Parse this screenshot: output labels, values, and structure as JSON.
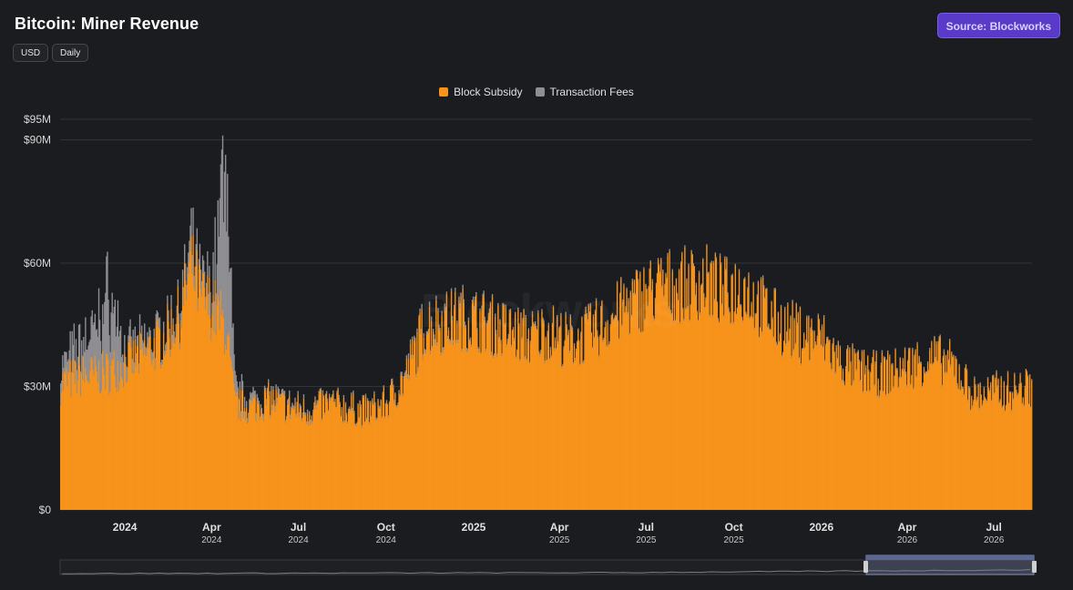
{
  "header": {
    "title": "Bitcoin: Miner Revenue",
    "currency_label": "USD",
    "interval_label": "Daily",
    "source_label": "Source: Blockworks"
  },
  "watermark": "Blockworks",
  "colors": {
    "subsidy": "#f7931a",
    "fees": "#8e8e93",
    "background": "#1b1c1f",
    "grid": "#333438",
    "accent": "#5a3bc9"
  },
  "chart_data": {
    "type": "bar",
    "stacked": true,
    "title": "Bitcoin: Miner Revenue",
    "unit": "USD",
    "ylim": [
      0,
      95000000
    ],
    "y_ticks": [
      {
        "value": 0,
        "label": "$0"
      },
      {
        "value": 30000000,
        "label": "$30M"
      },
      {
        "value": 60000000,
        "label": "$60M"
      },
      {
        "value": 90000000,
        "label": "$90M"
      },
      {
        "value": 95000000,
        "label": "$95M"
      }
    ],
    "x_range": [
      "2023-10-25",
      "2026-08-10"
    ],
    "x_ticks": [
      {
        "date": "2024-01-01",
        "label": "2024",
        "sub": ""
      },
      {
        "date": "2024-04-01",
        "label": "Apr",
        "sub": "2024"
      },
      {
        "date": "2024-07-01",
        "label": "Jul",
        "sub": "2024"
      },
      {
        "date": "2024-10-01",
        "label": "Oct",
        "sub": "2024"
      },
      {
        "date": "2025-01-01",
        "label": "2025",
        "sub": ""
      },
      {
        "date": "2025-04-01",
        "label": "Apr",
        "sub": "2025"
      },
      {
        "date": "2025-07-01",
        "label": "Jul",
        "sub": "2025"
      },
      {
        "date": "2025-10-01",
        "label": "Oct",
        "sub": "2025"
      },
      {
        "date": "2026-01-01",
        "label": "2026",
        "sub": ""
      },
      {
        "date": "2026-04-01",
        "label": "Apr",
        "sub": "2026"
      },
      {
        "date": "2026-07-01",
        "label": "Jul",
        "sub": "2026"
      }
    ],
    "legend": {
      "position": "top-center"
    },
    "grid": true,
    "series": [
      {
        "name": "Block Subsidy",
        "color": "#f7931a",
        "x": [
          "2023-10-25",
          "2023-11-15",
          "2023-12-01",
          "2023-12-15",
          "2024-01-01",
          "2024-01-20",
          "2024-02-10",
          "2024-02-28",
          "2024-03-10",
          "2024-03-20",
          "2024-04-01",
          "2024-04-15",
          "2024-04-25",
          "2024-05-10",
          "2024-06-01",
          "2024-06-20",
          "2024-07-10",
          "2024-08-01",
          "2024-08-20",
          "2024-09-10",
          "2024-10-01",
          "2024-10-20",
          "2024-11-10",
          "2024-12-01",
          "2024-12-20",
          "2025-01-10",
          "2025-02-01",
          "2025-03-01",
          "2025-03-20",
          "2025-04-10",
          "2025-05-01",
          "2025-05-20",
          "2025-06-10",
          "2025-07-01",
          "2025-07-20",
          "2025-08-10",
          "2025-09-01",
          "2025-09-20",
          "2025-10-10",
          "2025-11-01",
          "2025-11-20",
          "2025-12-10",
          "2026-01-01",
          "2026-01-20",
          "2026-02-10",
          "2026-03-01",
          "2026-03-20",
          "2026-04-10",
          "2026-05-01",
          "2026-05-20",
          "2026-06-10",
          "2026-07-01",
          "2026-07-20",
          "2026-08-10"
        ],
        "values": [
          31000000,
          33000000,
          33000000,
          34000000,
          36000000,
          38000000,
          42000000,
          48000000,
          60000000,
          52000000,
          50000000,
          45000000,
          26000000,
          25000000,
          27000000,
          25000000,
          24000000,
          26000000,
          25000000,
          24000000,
          26000000,
          32000000,
          45000000,
          46000000,
          47000000,
          46000000,
          44000000,
          42000000,
          44000000,
          41000000,
          43000000,
          46000000,
          50000000,
          53000000,
          55000000,
          55000000,
          56000000,
          53000000,
          55000000,
          49000000,
          45000000,
          43000000,
          42000000,
          36000000,
          34000000,
          33000000,
          34000000,
          36000000,
          37000000,
          35000000,
          28000000,
          29000000,
          29000000,
          30000000
        ]
      },
      {
        "name": "Transaction Fees",
        "color": "#8e8e93",
        "x": [
          "2023-10-25",
          "2023-11-15",
          "2023-12-01",
          "2023-12-15",
          "2024-01-01",
          "2024-01-20",
          "2024-02-10",
          "2024-02-28",
          "2024-03-10",
          "2024-03-20",
          "2024-04-01",
          "2024-04-15",
          "2024-04-25",
          "2024-05-10",
          "2024-06-01",
          "2024-06-20",
          "2024-07-10",
          "2024-08-01",
          "2024-08-20",
          "2024-09-10",
          "2024-10-01",
          "2024-10-20",
          "2024-11-10",
          "2024-12-01",
          "2024-12-20",
          "2025-01-10",
          "2025-02-01",
          "2025-03-01",
          "2025-03-20",
          "2025-04-10",
          "2025-05-01",
          "2025-05-20",
          "2025-06-10",
          "2025-07-01",
          "2025-07-20",
          "2025-08-10",
          "2025-09-01",
          "2025-09-20",
          "2025-10-10",
          "2025-11-01",
          "2025-11-20",
          "2025-12-10",
          "2026-01-01",
          "2026-01-20",
          "2026-02-10",
          "2026-03-01",
          "2026-03-20",
          "2026-04-10",
          "2026-05-01",
          "2026-05-20",
          "2026-06-10",
          "2026-07-01",
          "2026-07-20",
          "2026-08-10"
        ],
        "values": [
          4000000,
          8000000,
          12000000,
          20000000,
          3000000,
          3000000,
          2000000,
          3000000,
          5000000,
          4000000,
          5000000,
          45000000,
          4000000,
          2000000,
          1000000,
          1000000,
          1000000,
          500000,
          500000,
          500000,
          500000,
          800000,
          1000000,
          1000000,
          800000,
          800000,
          600000,
          500000,
          500000,
          500000,
          500000,
          400000,
          400000,
          400000,
          400000,
          400000,
          400000,
          400000,
          400000,
          400000,
          400000,
          400000,
          400000,
          400000,
          400000,
          400000,
          400000,
          400000,
          400000,
          400000,
          400000,
          400000,
          400000,
          400000
        ]
      }
    ]
  }
}
